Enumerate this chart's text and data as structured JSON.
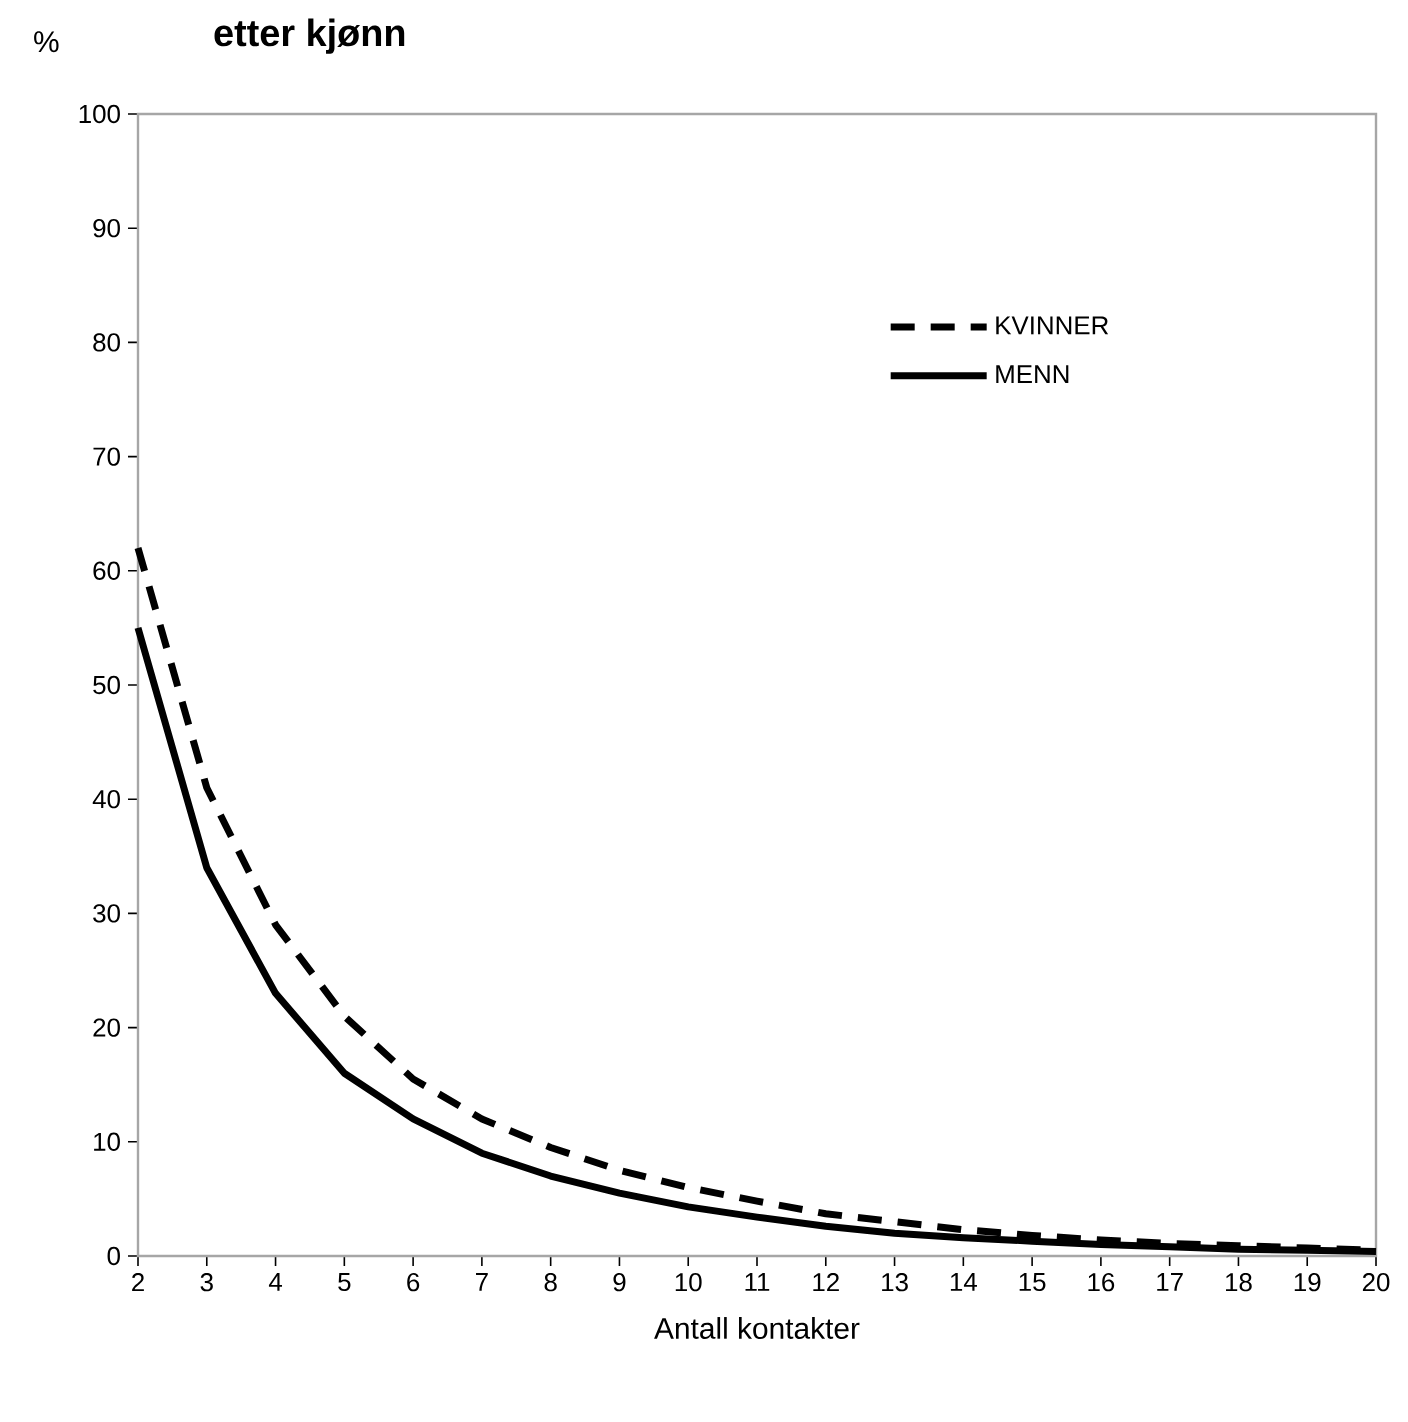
{
  "chart_data": {
    "type": "line",
    "title": "etter kjønn",
    "ylabel": "%",
    "xlabel": "Antall kontakter",
    "x": [
      2,
      3,
      4,
      5,
      6,
      7,
      8,
      9,
      10,
      11,
      12,
      13,
      14,
      15,
      16,
      17,
      18,
      19,
      20
    ],
    "series": [
      {
        "name": "KVINNER",
        "color": "#000000",
        "line_style": "dashed",
        "values": [
          62,
          41,
          29,
          21,
          15.5,
          12,
          9.5,
          7.5,
          6,
          4.8,
          3.7,
          3,
          2.3,
          1.8,
          1.4,
          1.1,
          0.9,
          0.7,
          0.5
        ]
      },
      {
        "name": "MENN",
        "color": "#000000",
        "line_style": "solid",
        "values": [
          55,
          34,
          23,
          16,
          12,
          9,
          7,
          5.5,
          4.3,
          3.4,
          2.6,
          2,
          1.6,
          1.3,
          1,
          0.8,
          0.6,
          0.5,
          0.4
        ]
      }
    ],
    "xlim": [
      2,
      20
    ],
    "xticks": [
      2,
      3,
      4,
      5,
      6,
      7,
      8,
      9,
      10,
      11,
      12,
      13,
      14,
      15,
      16,
      17,
      18,
      19,
      20
    ],
    "ylim": [
      0,
      100
    ],
    "yticks": [
      0,
      10,
      20,
      30,
      40,
      50,
      60,
      70,
      80,
      90,
      100
    ],
    "grid": false,
    "legend": "top right",
    "marker": "none"
  }
}
